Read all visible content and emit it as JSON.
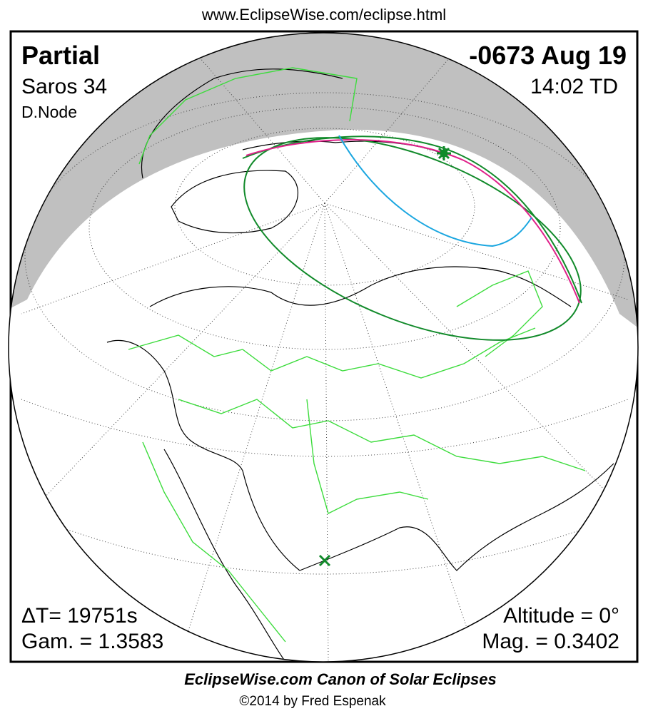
{
  "header": {
    "url": "www.EclipseWise.com/eclipse.html"
  },
  "info": {
    "eclipse_type": "Partial",
    "date": "-0673 Aug 19",
    "saros": "Saros  34",
    "time": "14:02 TD",
    "node": "D.Node",
    "delta_t": "ΔT=  19751s",
    "gamma": "Gam. = 1.3583",
    "altitude": "Altitude =  0°",
    "magnitude": "Mag. = 0.3402"
  },
  "footer": {
    "canon": "EclipseWise.com Canon of Solar Eclipses",
    "copyright": "©2014 by Fred Espenak"
  }
}
